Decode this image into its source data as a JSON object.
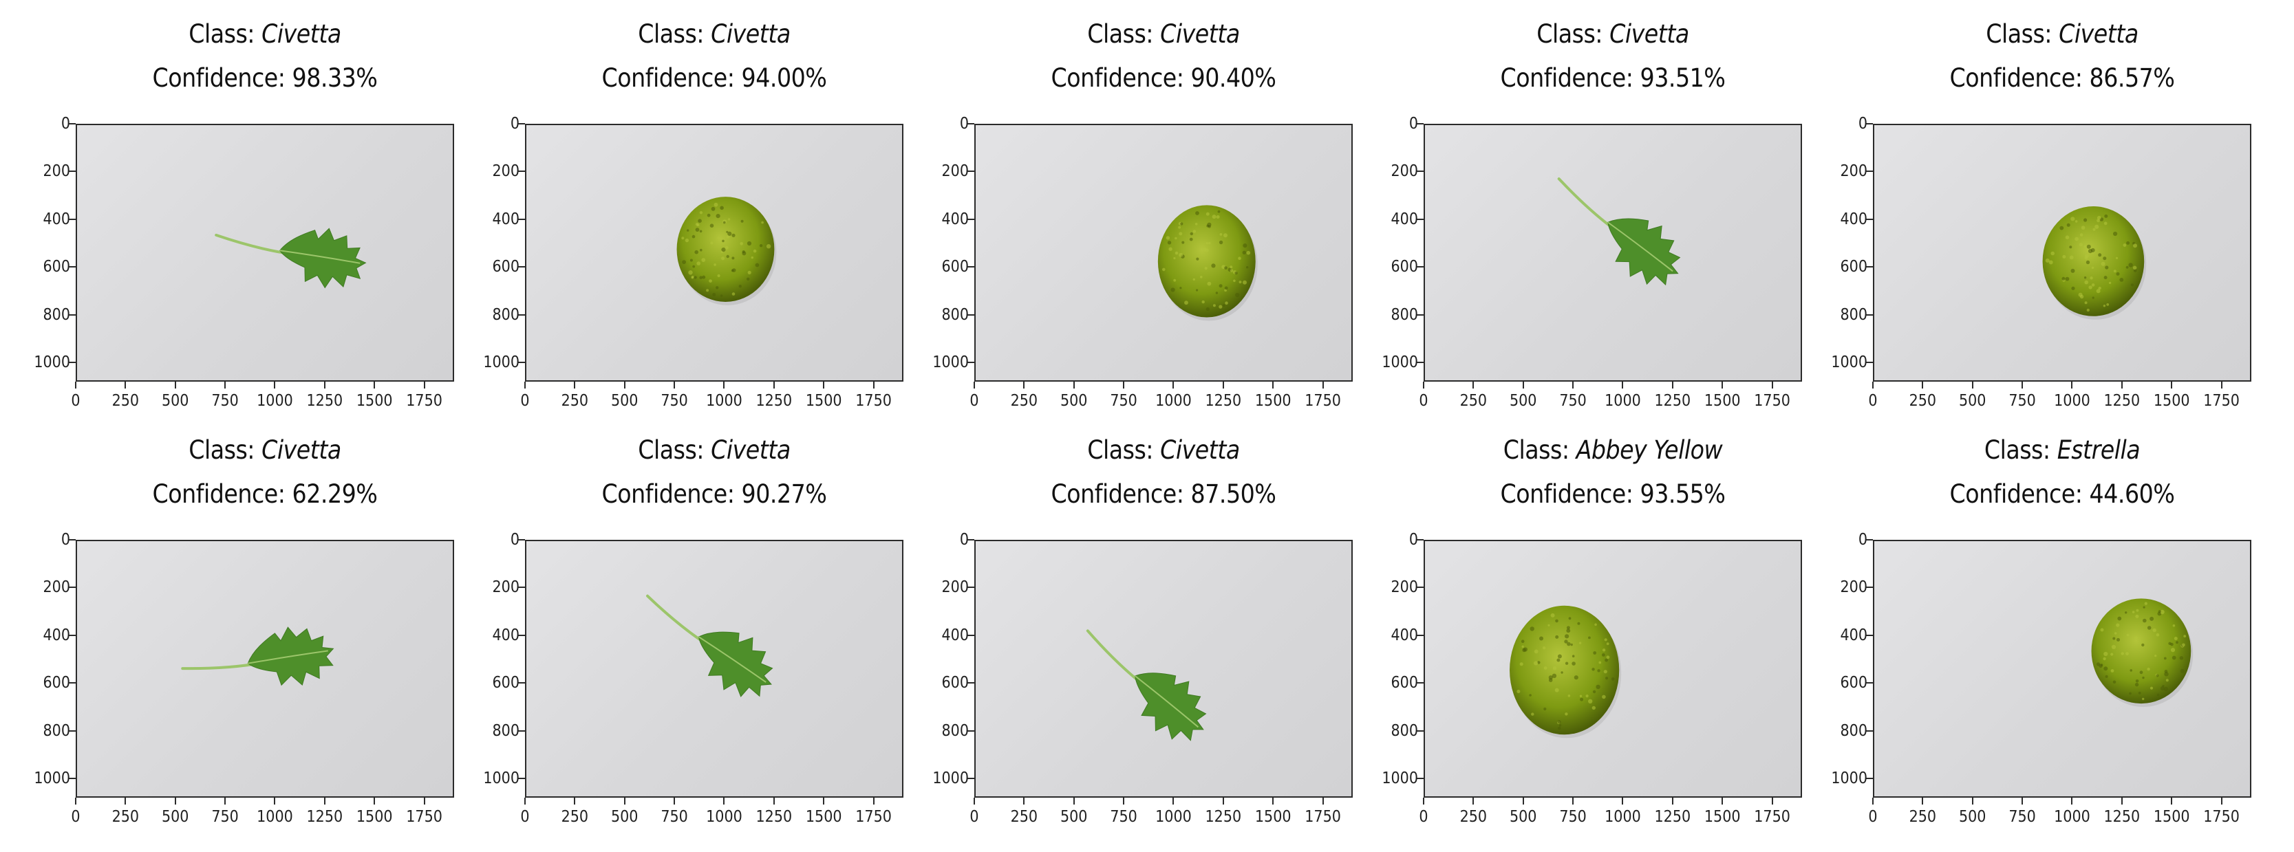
{
  "class_prefix": "Class: ",
  "confidence_prefix": "Confidence: ",
  "y_ticks": [
    "0",
    "200",
    "400",
    "600",
    "800",
    "1000"
  ],
  "x_ticks": [
    "0",
    "250",
    "500",
    "750",
    "1000",
    "1250",
    "1500",
    "1750"
  ],
  "panels": [
    {
      "class": "Civetta",
      "confidence": "98.33%",
      "object": "leaf",
      "cx": 1120,
      "cy": 540,
      "angle": 10
    },
    {
      "class": "Civetta",
      "confidence": "94.00%",
      "object": "flower",
      "cx": 1000,
      "cy": 520,
      "rx": 245,
      "ry": 220
    },
    {
      "class": "Civetta",
      "confidence": "90.40%",
      "object": "flower",
      "cx": 1160,
      "cy": 570,
      "rx": 245,
      "ry": 235
    },
    {
      "class": "Civetta",
      "confidence": "93.51%",
      "object": "leaf",
      "cx": 1000,
      "cy": 460,
      "angle": 38
    },
    {
      "class": "Civetta",
      "confidence": "86.57%",
      "object": "flower",
      "cx": 1100,
      "cy": 570,
      "rx": 255,
      "ry": 230
    },
    {
      "class": "Civetta",
      "confidence": "62.29%",
      "object": "leaf",
      "cx": 960,
      "cy": 500,
      "angle": -8
    },
    {
      "class": "Civetta",
      "confidence": "90.27%",
      "object": "leaf",
      "cx": 950,
      "cy": 450,
      "angle": 35
    },
    {
      "class": "Civetta",
      "confidence": "87.50%",
      "object": "leaf",
      "cx": 880,
      "cy": 620,
      "angle": 40
    },
    {
      "class": "Abbey Yellow",
      "confidence": "93.55%",
      "object": "flower",
      "cx": 700,
      "cy": 540,
      "rx": 275,
      "ry": 270
    },
    {
      "class": "Estrella",
      "confidence": "44.60%",
      "object": "flower",
      "cx": 1340,
      "cy": 460,
      "rx": 250,
      "ry": 220
    }
  ],
  "colors": {
    "leaf": "#4e8f2a",
    "leaf_vein": "#9cc56a",
    "flower": "#7e9a12",
    "flower_dark": "#4c5f08",
    "flower_light": "#b3c43a"
  }
}
